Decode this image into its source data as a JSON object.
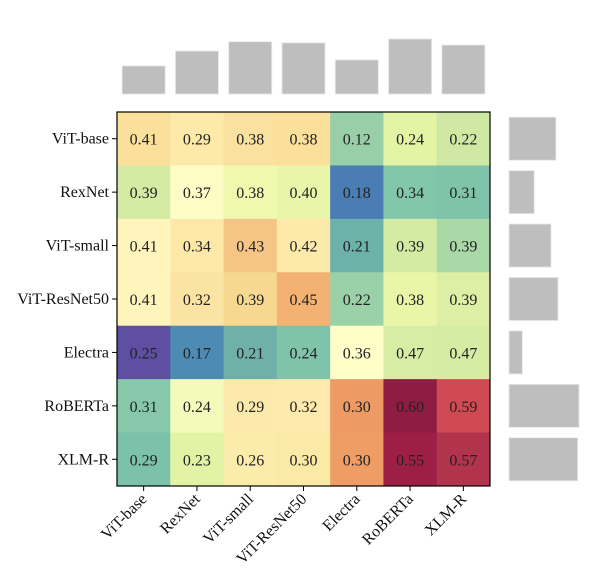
{
  "chart_data": {
    "type": "heatmap",
    "title": "",
    "xlabel": "",
    "ylabel": "",
    "rows": [
      "ViT-base",
      "RexNet",
      "ViT-small",
      "ViT-ResNet50",
      "Electra",
      "RoBERTa",
      "XLM-R"
    ],
    "columns": [
      "ViT-base",
      "RexNet",
      "ViT-small",
      "ViT-ResNet50",
      "Electra",
      "RoBERTa",
      "XLM-R"
    ],
    "values": [
      [
        0.41,
        0.29,
        0.38,
        0.38,
        0.12,
        0.24,
        0.22
      ],
      [
        0.39,
        0.37,
        0.38,
        0.4,
        0.18,
        0.34,
        0.31
      ],
      [
        0.41,
        0.34,
        0.43,
        0.42,
        0.21,
        0.39,
        0.39
      ],
      [
        0.41,
        0.32,
        0.39,
        0.45,
        0.22,
        0.38,
        0.39
      ],
      [
        0.25,
        0.17,
        0.21,
        0.24,
        0.36,
        0.47,
        0.47
      ],
      [
        0.31,
        0.24,
        0.29,
        0.32,
        0.3,
        0.6,
        0.59
      ],
      [
        0.29,
        0.23,
        0.26,
        0.3,
        0.3,
        0.55,
        0.57
      ]
    ],
    "cell_colors": [
      [
        "#fae09a",
        "#fde9a8",
        "#fbe1a0",
        "#fbe09c",
        "#98cfa8",
        "#e5f3a5",
        "#cfe9a4"
      ],
      [
        "#d4eba3",
        "#fefcc6",
        "#f0f8b0",
        "#e9f5a8",
        "#4a7db4",
        "#83c7aa",
        "#7fc4aa"
      ],
      [
        "#fef4bc",
        "#fde8a8",
        "#f6c585",
        "#fdeaab",
        "#6db2a8",
        "#d4eba3",
        "#a8d9a6"
      ],
      [
        "#fef4bc",
        "#fbe4a3",
        "#f7d891",
        "#f3b272",
        "#9bd1a8",
        "#e9f6a8",
        "#dcefa4"
      ],
      [
        "#5e4fa2",
        "#4d8ab4",
        "#6fb1a8",
        "#7fc3aa",
        "#fffdc8",
        "#d7eda4",
        "#d5eca3"
      ],
      [
        "#87c8aa",
        "#f4faba",
        "#fbeaab",
        "#fdeaac",
        "#ee9a64",
        "#8f1c42",
        "#cf4a53"
      ],
      [
        "#7cc2aa",
        "#e3f3a5",
        "#fbecab",
        "#fbe9a7",
        "#ee9d64",
        "#9e1f45",
        "#b2334c"
      ]
    ],
    "colormap": "Spectral_r",
    "top_marginal": {
      "type": "bar",
      "categories": [
        "ViT-base",
        "RexNet",
        "ViT-small",
        "ViT-ResNet50",
        "Electra",
        "RoBERTa",
        "XLM-R"
      ],
      "values": [
        0.51,
        0.78,
        0.95,
        0.93,
        0.62,
        1.0,
        0.89
      ],
      "color": "#bebebe"
    },
    "right_marginal": {
      "type": "bar",
      "categories": [
        "ViT-base",
        "RexNet",
        "ViT-small",
        "ViT-ResNet50",
        "Electra",
        "RoBERTa",
        "XLM-R"
      ],
      "values": [
        0.67,
        0.36,
        0.6,
        0.7,
        0.19,
        1.0,
        0.98
      ],
      "color": "#bebebe"
    },
    "grid": false,
    "legend": "none"
  }
}
